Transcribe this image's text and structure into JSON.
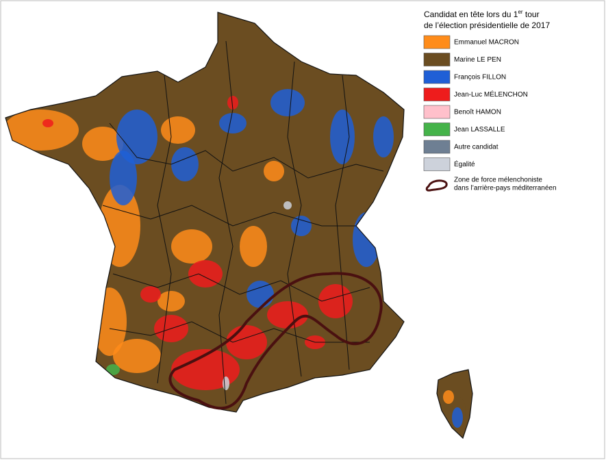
{
  "map": {
    "title": {
      "line1_main": "Candidat en tête lors du 1",
      "line1_sup": "er",
      "line1_end": " tour",
      "line2": "de l’élection présidentielle de 2017"
    },
    "legend": [
      {
        "label": "Emmanuel MACRON",
        "color": "#ff8c1a"
      },
      {
        "label": "Marine LE PEN",
        "color": "#6b4d21"
      },
      {
        "label": "François FILLON",
        "color": "#1f5fd6"
      },
      {
        "label": "Jean-Luc MÉLENCHON",
        "color": "#ee1c1c"
      },
      {
        "label": "Benoît HAMON",
        "color": "#ffc0cb"
      },
      {
        "label": "Jean LASSALLE",
        "color": "#45b34a"
      },
      {
        "label": "Autre candidat",
        "color": "#6e7f93"
      },
      {
        "label": "Égalité",
        "color": "#cdd2db"
      }
    ],
    "zone": {
      "line1": "Zone de force mélenchoniste",
      "line2": "dans l’arrière-pays méditerranéen",
      "color": "#4a1010"
    }
  }
}
